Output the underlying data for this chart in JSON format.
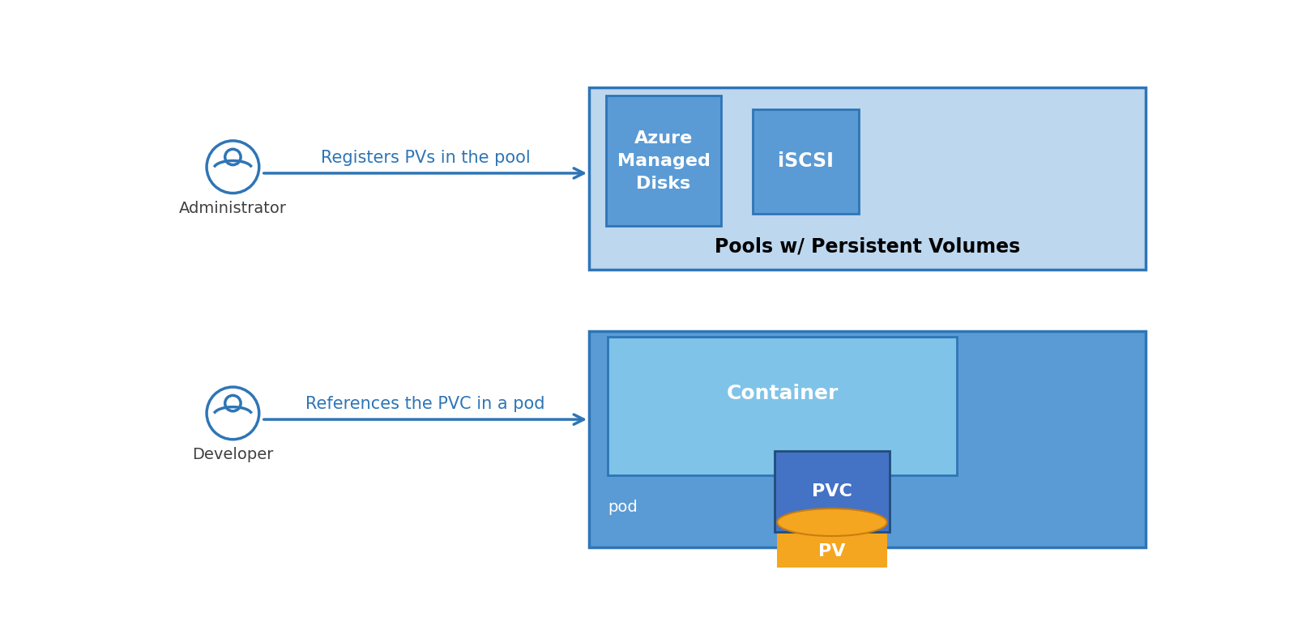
{
  "bg_color": "#ffffff",
  "arrow_color": "#2E75B6",
  "admin_label": "Administrator",
  "dev_label": "Developer",
  "arrow1_text": "Registers PVs in the pool",
  "arrow2_text": "References the PVC in a pod",
  "pools_box_color": "#BDD7EE",
  "pools_box_border": "#2E75B6",
  "pools_label": "Pools w/ Persistent Volumes",
  "azure_box_color": "#5B9BD5",
  "azure_box_border": "#2E75B6",
  "azure_label": "Azure\nManaged\nDisks",
  "iscsi_box_color": "#5B9BD5",
  "iscsi_box_border": "#2E75B6",
  "iscsi_label": "iSCSI",
  "pod_box_color": "#5B9BD5",
  "pod_box_border": "#2E75B6",
  "pod_label": "pod",
  "container_box_color": "#7FC3E8",
  "container_box_border": "#2E75B6",
  "container_label": "Container",
  "pvc_box_color": "#4472C4",
  "pvc_box_border": "#1F4E79",
  "pvc_label": "PVC",
  "pv_color_body": "#F4A620",
  "pv_color_dark": "#C97D10",
  "pv_label": "PV",
  "icon_color": "#2E75B6",
  "text_color_dark": "#1F4E79",
  "text_color_arrow": "#2E75B6",
  "text_color_white": "#ffffff",
  "text_color_black": "#000000",
  "text_color_label": "#404040"
}
